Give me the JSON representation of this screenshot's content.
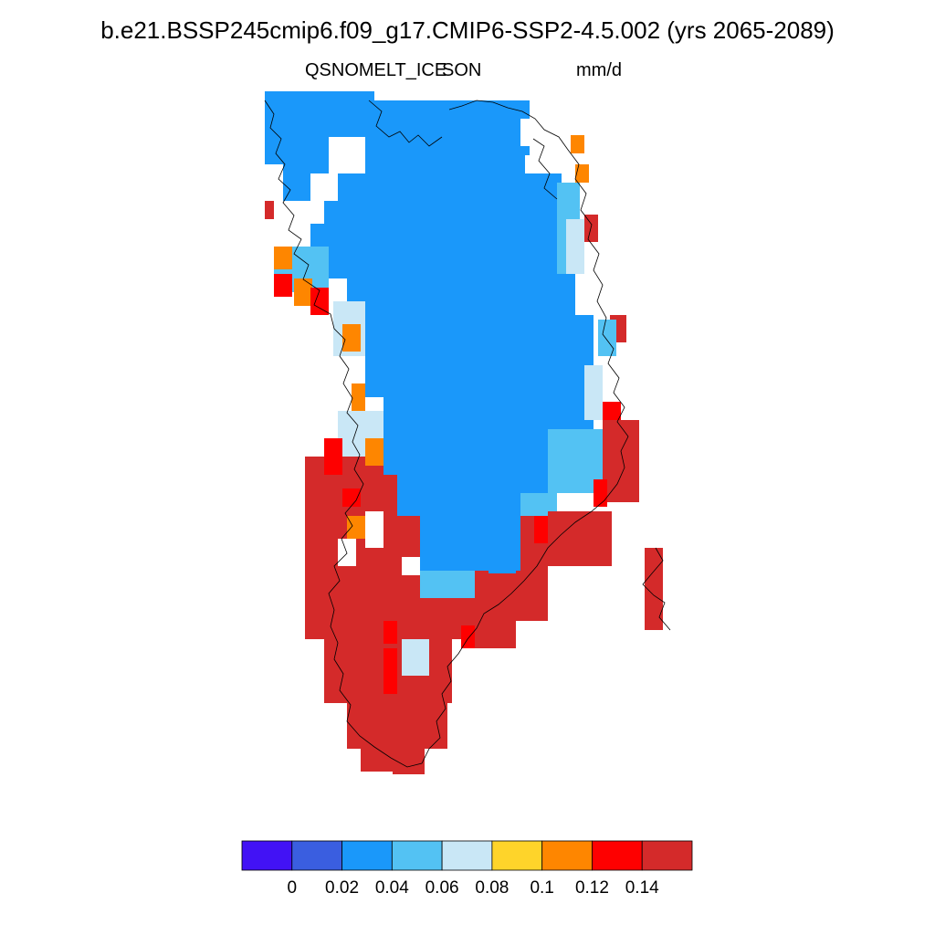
{
  "title": "b.e21.BSSP245cmip6.f09_g17.CMIP6-SSP2-4.5.002 (yrs 2065-2089)",
  "subtitle": {
    "variable": "QSNOMELT_ICE",
    "season": "SON",
    "units": "mm/d"
  },
  "colorbar": {
    "colors": [
      "#4212f5",
      "#3a5ee0",
      "#1a98fa",
      "#53c2f3",
      "#c9e7f6",
      "#fed42a",
      "#fe8600",
      "#fe0000",
      "#d42a2a"
    ],
    "labels": [
      "0",
      "0.02",
      "0.04",
      "0.06",
      "0.08",
      "0.1",
      "0.12",
      "0.14"
    ]
  }
}
